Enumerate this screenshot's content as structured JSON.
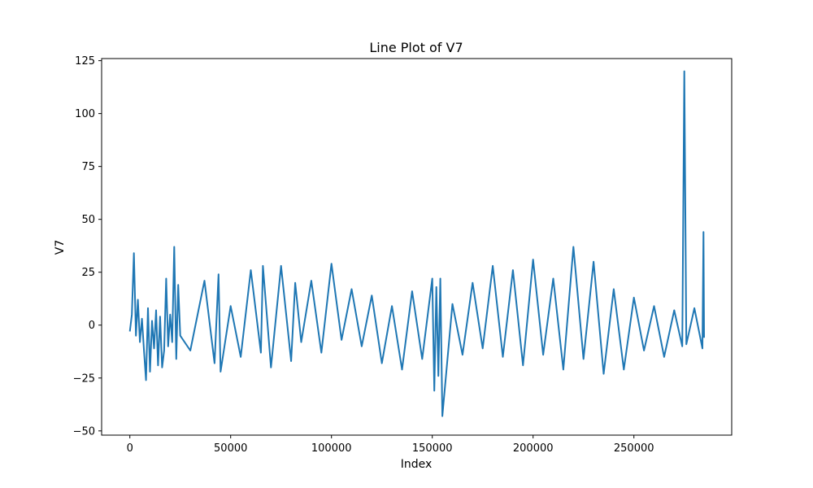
{
  "chart_data": {
    "type": "line",
    "title": "Line Plot of V7",
    "xlabel": "Index",
    "ylabel": "V7",
    "xlim": [
      -14000,
      298500
    ],
    "ylim": [
      -52,
      126
    ],
    "xticks": [
      0,
      50000,
      100000,
      150000,
      200000,
      250000
    ],
    "yticks": [
      -50,
      -25,
      0,
      25,
      50,
      75,
      100,
      125
    ],
    "color": "#1f77b4",
    "grid": false,
    "series": [
      {
        "x": [
          0,
          1000,
          2000,
          3000,
          4000,
          5000,
          6000,
          7000,
          8000,
          9000,
          10000,
          11000,
          12000,
          13000,
          14000,
          15000,
          16000,
          17000,
          18000,
          19000,
          20000,
          21000,
          22000,
          23000,
          24000,
          25000,
          30000,
          37000,
          42000,
          44000,
          45000,
          50000,
          55000,
          60000,
          65000,
          66000,
          70000,
          75000,
          80000,
          82000,
          85000,
          90000,
          95000,
          100000,
          105000,
          110000,
          115000,
          120000,
          125000,
          130000,
          135000,
          140000,
          145000,
          150000,
          151000,
          152000,
          153000,
          154000,
          155000,
          160000,
          165000,
          170000,
          175000,
          180000,
          185000,
          190000,
          195000,
          200000,
          205000,
          210000,
          215000,
          220000,
          225000,
          230000,
          235000,
          240000,
          245000,
          250000,
          255000,
          260000,
          265000,
          270000,
          274000,
          275000,
          276000,
          280000,
          284000,
          284500,
          284800
        ],
        "y": [
          -3,
          5,
          34,
          -5,
          12,
          -8,
          3,
          -12,
          -26,
          8,
          -22,
          2,
          -11,
          7,
          -19,
          4,
          -20,
          -12,
          22,
          -10,
          5,
          -8,
          37,
          -16,
          19,
          -5,
          -12,
          21,
          -18,
          24,
          -22,
          9,
          -15,
          26,
          -13,
          28,
          -20,
          28,
          -17,
          20,
          -8,
          21,
          -13,
          29,
          -7,
          17,
          -10,
          14,
          -18,
          9,
          -21,
          16,
          -16,
          22,
          -31,
          18,
          -24,
          22,
          -43,
          10,
          -14,
          20,
          -11,
          28,
          -15,
          26,
          -19,
          31,
          -14,
          22,
          -21,
          37,
          -16,
          30,
          -23,
          17,
          -21,
          13,
          -12,
          9,
          -15,
          7,
          -10,
          120,
          -9,
          8,
          -11,
          44,
          -6
        ]
      }
    ]
  }
}
